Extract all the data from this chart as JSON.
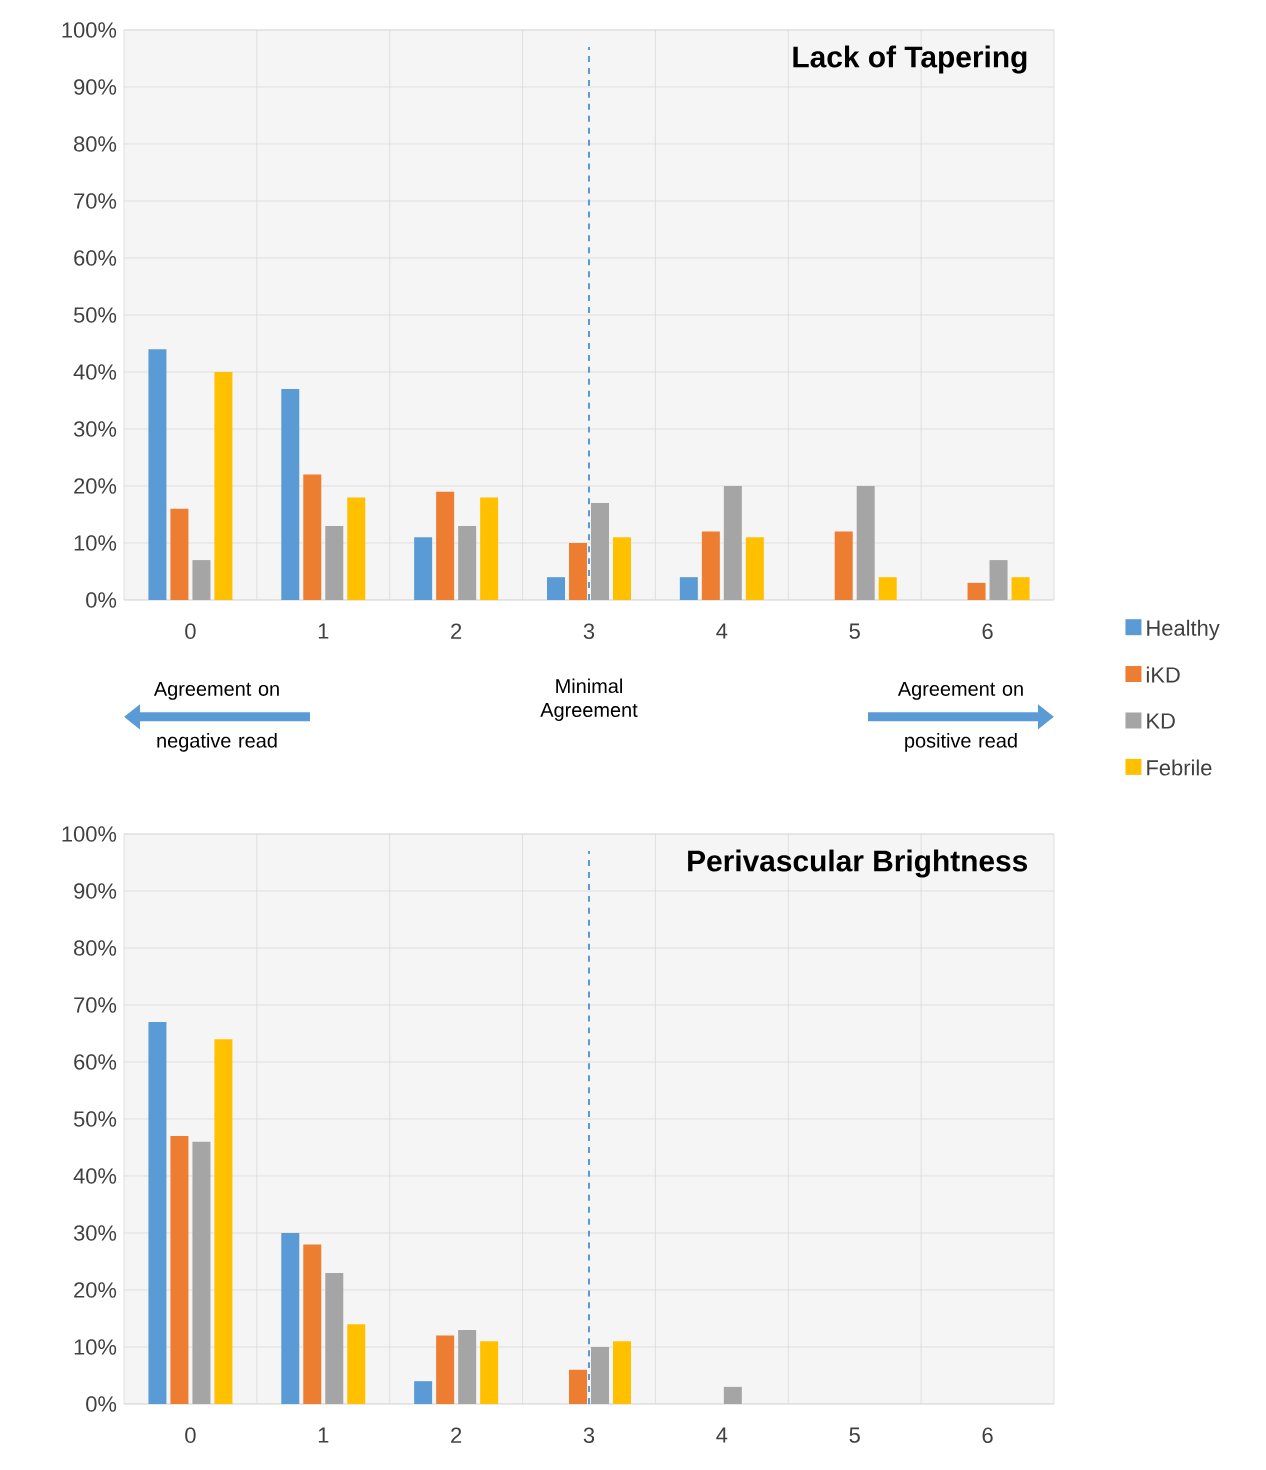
{
  "chart_data": [
    {
      "type": "bar",
      "title": "Lack of Tapering",
      "categories": [
        "0",
        "1",
        "2",
        "3",
        "4",
        "5",
        "6"
      ],
      "series": [
        {
          "name": "Healthy",
          "color": "#5b9bd5",
          "values": [
            44,
            37,
            11,
            4,
            4,
            0,
            0
          ]
        },
        {
          "name": "iKD",
          "color": "#ed7d31",
          "values": [
            16,
            22,
            19,
            10,
            12,
            12,
            3
          ]
        },
        {
          "name": "KD",
          "color": "#a5a5a5",
          "values": [
            7,
            13,
            13,
            17,
            20,
            20,
            7
          ]
        },
        {
          "name": "Febrile",
          "color": "#ffc000",
          "values": [
            40,
            18,
            18,
            11,
            11,
            4,
            4
          ]
        }
      ],
      "ylim": [
        0,
        100
      ],
      "yticks": [
        {
          "value": 0,
          "label": "0%"
        },
        {
          "value": 10,
          "label": "10%"
        },
        {
          "value": 20,
          "label": "20%"
        },
        {
          "value": 30,
          "label": "30%"
        },
        {
          "value": 40,
          "label": "40%"
        },
        {
          "value": 50,
          "label": "50%"
        },
        {
          "value": 60,
          "label": "60%"
        },
        {
          "value": 70,
          "label": "70%"
        },
        {
          "value": 80,
          "label": "80%"
        },
        {
          "value": 90,
          "label": "90%"
        },
        {
          "value": 100,
          "label": "100%"
        }
      ],
      "ref_lines": [
        {
          "axis": "x",
          "value": "3",
          "color": "#5b9bd5",
          "line_style": "dashed"
        }
      ],
      "annotations": [
        "Agreement on negative read",
        "Minimal Agreement",
        "Agreement on positive read"
      ],
      "grid": true,
      "legend": "right"
    },
    {
      "type": "bar",
      "title": "Perivascular Brightness",
      "categories": [
        "0",
        "1",
        "2",
        "3",
        "4",
        "5",
        "6"
      ],
      "series": [
        {
          "color": "#5b9bd5",
          "values": [
            67,
            30,
            4,
            0,
            0,
            0,
            0
          ]
        },
        {
          "color": "#ed7d31",
          "values": [
            47,
            28,
            12,
            6,
            0,
            0,
            0
          ]
        },
        {
          "color": "#a5a5a5",
          "values": [
            46,
            23,
            13,
            10,
            3,
            0,
            0
          ]
        },
        {
          "color": "#ffc000",
          "values": [
            64,
            14,
            11,
            11,
            0,
            0,
            0
          ]
        }
      ],
      "ylim": [
        0,
        100
      ],
      "yticks": [
        {
          "value": 0,
          "label": "0%"
        },
        {
          "value": 10,
          "label": "10%"
        },
        {
          "value": 20,
          "label": "20%"
        },
        {
          "value": 30,
          "label": "30%"
        },
        {
          "value": 40,
          "label": "40%"
        },
        {
          "value": 50,
          "label": "50%"
        },
        {
          "value": 60,
          "label": "60%"
        },
        {
          "value": 70,
          "label": "70%"
        },
        {
          "value": 80,
          "label": "80%"
        },
        {
          "value": 90,
          "label": "90%"
        },
        {
          "value": 100,
          "label": "100%"
        }
      ],
      "ref_lines": [
        {
          "axis": "x",
          "value": "3",
          "color": "#5b9bd5",
          "line_style": "dashed"
        }
      ],
      "grid": true
    }
  ]
}
